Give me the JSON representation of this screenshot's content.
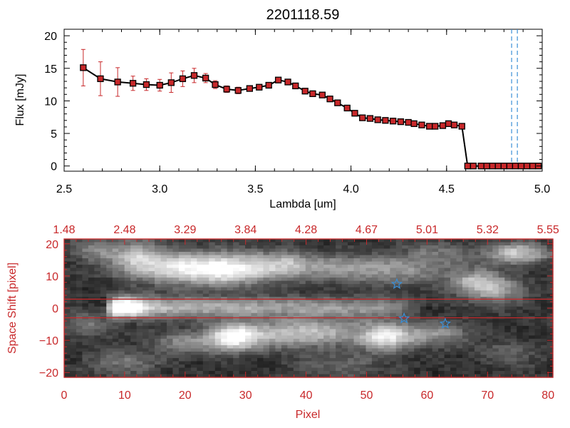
{
  "title": "2201118.59",
  "colors": {
    "axis_top": "#000000",
    "axis_bottom": "#c8282a",
    "marker": "#c8282a",
    "line": "#000000",
    "errorbar": "#c8282a",
    "marker_line": "#3a8fd6",
    "extraction_band": "#c8282a",
    "star": "#3a8fd6"
  },
  "chart_data": [
    {
      "type": "line",
      "title": "2201118.59",
      "xlabel": "Lambda [um]",
      "ylabel": "Flux [mJy]",
      "xlim": [
        2.5,
        5.0
      ],
      "ylim": [
        -0.8,
        21
      ],
      "xticks": [
        2.5,
        3.0,
        3.5,
        4.0,
        4.5,
        5.0
      ],
      "xtick_labels": [
        "2.5",
        "3.0",
        "3.5",
        "4.0",
        "4.5",
        "5.0"
      ],
      "yticks": [
        0,
        5,
        10,
        15,
        20
      ],
      "ytick_labels": [
        "0",
        "5",
        "10",
        "15",
        "20"
      ],
      "series": [
        {
          "x": [
            2.6,
            2.69,
            2.78,
            2.86,
            2.93,
            3.0,
            3.06,
            3.12,
            3.18,
            3.24,
            3.29,
            3.35,
            3.41,
            3.47,
            3.52,
            3.57,
            3.62,
            3.67,
            3.71,
            3.76,
            3.8,
            3.85,
            3.89,
            3.93,
            3.98,
            4.02,
            4.06,
            4.1,
            4.14,
            4.18,
            4.22,
            4.26,
            4.3,
            4.33,
            4.37,
            4.41,
            4.44,
            4.48,
            4.51,
            4.54,
            4.58,
            4.61,
            4.64,
            4.68,
            4.71,
            4.74,
            4.77,
            4.8,
            4.83,
            4.86,
            4.89,
            4.92,
            4.95,
            4.98
          ],
          "y": [
            15.1,
            13.4,
            12.9,
            12.7,
            12.5,
            12.4,
            12.8,
            13.4,
            13.9,
            13.5,
            12.5,
            11.8,
            11.6,
            11.9,
            12.1,
            12.4,
            13.2,
            12.9,
            12.3,
            11.5,
            11.1,
            10.9,
            10.3,
            9.7,
            8.9,
            8.1,
            7.4,
            7.3,
            7.1,
            7.0,
            6.9,
            6.8,
            6.7,
            6.5,
            6.3,
            6.1,
            6.1,
            6.2,
            6.5,
            6.3,
            6.1,
            0.0,
            0.0,
            0.0,
            0.0,
            0.0,
            0.0,
            0.0,
            0.0,
            0.0,
            0.0,
            0.0,
            0.0,
            0.0
          ],
          "yerr": [
            2.8,
            2.6,
            2.2,
            1.1,
            0.9,
            0.9,
            1.5,
            1.2,
            1.1,
            0.7,
            0.6,
            0.5,
            0.5,
            0.4,
            0.4,
            0.4,
            0.4,
            0.4,
            0.4,
            0.4,
            0.4,
            0.4,
            0.4,
            0.4,
            0.4,
            0.4,
            0.4,
            0.4,
            0.4,
            0.4,
            0.4,
            0.4,
            0.4,
            0.4,
            0.4,
            0.4,
            0.4,
            0.4,
            0.4,
            0.4,
            0.4,
            0.3,
            0.3,
            0.3,
            0.3,
            0.3,
            0.3,
            0.3,
            0.3,
            0.3,
            0.3,
            0.3,
            0.3,
            0.3
          ]
        }
      ],
      "vertical_dashed_lines_x": [
        4.84,
        4.87
      ]
    },
    {
      "type": "heatmap",
      "xlabel": "Pixel",
      "ylabel": "Space Shift [pixel]",
      "xlim": [
        0,
        80.8
      ],
      "ylim": [
        -21.5,
        21.5
      ],
      "xticks": [
        0,
        10,
        20,
        30,
        40,
        50,
        60,
        70,
        80
      ],
      "xtick_labels": [
        "0",
        "10",
        "20",
        "30",
        "40",
        "50",
        "60",
        "70",
        "80"
      ],
      "yticks": [
        -20,
        -10,
        0,
        10,
        20
      ],
      "ytick_labels": [
        "−20",
        "−10",
        "0",
        "10",
        "20"
      ],
      "top_axis_ticks": [
        0,
        10,
        20,
        30,
        40,
        50,
        60,
        70,
        80
      ],
      "top_axis_labels": [
        "1.48",
        "2.48",
        "3.29",
        "3.84",
        "4.28",
        "4.67",
        "5.01",
        "5.32",
        "5.55"
      ],
      "extraction_band_y": [
        -3.0,
        2.8
      ],
      "stars": [
        {
          "x": 55,
          "y": 7.5
        },
        {
          "x": 56.2,
          "y": -3.2
        },
        {
          "x": 63,
          "y": -4.8
        }
      ],
      "trace": {
        "center_y": 0.2,
        "start_x": 8.5,
        "end_x": 54,
        "peak_x": 10.2
      },
      "blobs": [
        {
          "x": 12,
          "y": 15,
          "amp": 0.55,
          "sx": 3.0,
          "sy": 4
        },
        {
          "x": 19,
          "y": 12.5,
          "amp": 0.6,
          "sx": 4.0,
          "sy": 3.5
        },
        {
          "x": 27,
          "y": 12,
          "amp": 0.75,
          "sx": 4.5,
          "sy": 3.5
        },
        {
          "x": 36,
          "y": 13.5,
          "amp": 0.45,
          "sx": 4.0,
          "sy": 3
        },
        {
          "x": 46,
          "y": 12.5,
          "amp": 0.35,
          "sx": 6.0,
          "sy": 3
        },
        {
          "x": 56,
          "y": 11.5,
          "amp": 0.3,
          "sx": 5.0,
          "sy": 3
        },
        {
          "x": 68,
          "y": 8,
          "amp": 0.5,
          "sx": 3.0,
          "sy": 3
        },
        {
          "x": 75,
          "y": 17,
          "amp": 0.6,
          "sx": 3.5,
          "sy": 2.5
        },
        {
          "x": 72,
          "y": 5,
          "amp": 0.35,
          "sx": 3.0,
          "sy": 3
        },
        {
          "x": 28,
          "y": -9,
          "amp": 0.75,
          "sx": 3.0,
          "sy": 3
        },
        {
          "x": 36,
          "y": -8,
          "amp": 0.45,
          "sx": 5.0,
          "sy": 3
        },
        {
          "x": 44,
          "y": -7.5,
          "amp": 0.35,
          "sx": 5.0,
          "sy": 3
        },
        {
          "x": 53,
          "y": -9,
          "amp": 0.7,
          "sx": 3.0,
          "sy": 3
        },
        {
          "x": 61,
          "y": -8,
          "amp": 0.4,
          "sx": 4.0,
          "sy": 2.5
        },
        {
          "x": 20,
          "y": -10.5,
          "amp": 0.35,
          "sx": 4.0,
          "sy": 2.5
        },
        {
          "x": 5,
          "y": 18,
          "amp": 0.3,
          "sx": 3.0,
          "sy": 3
        },
        {
          "x": 4,
          "y": -5,
          "amp": 0.25,
          "sx": 3.0,
          "sy": 3
        },
        {
          "x": 10,
          "y": -17,
          "amp": 0.25,
          "sx": 4.0,
          "sy": 3
        },
        {
          "x": 62,
          "y": 17,
          "amp": 0.25,
          "sx": 4.0,
          "sy": 3
        },
        {
          "x": 46,
          "y": -18,
          "amp": 0.2,
          "sx": 5.0,
          "sy": 3
        },
        {
          "x": 74,
          "y": -14,
          "amp": 0.2,
          "sx": 3.0,
          "sy": 3
        }
      ]
    }
  ]
}
